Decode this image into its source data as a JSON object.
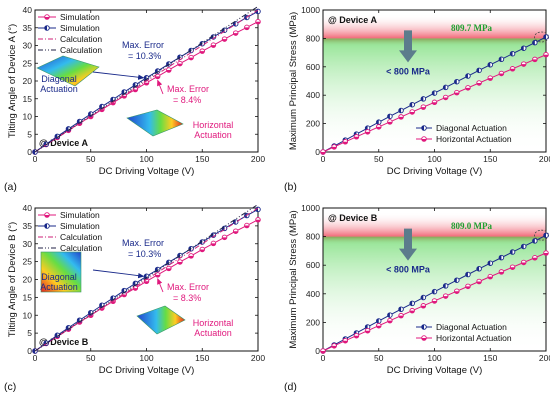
{
  "figure": {
    "colors": {
      "diagonal": "#1a2a8a",
      "horizontal": "#e0197d",
      "calc_diag": "#222244",
      "calc_horz": "#cc2277",
      "danger": "#f06070",
      "safe": "#44cc44",
      "note": "#1e9e2e"
    }
  },
  "chart_data": [
    {
      "panel": "(a)",
      "type": "line",
      "device_label": "@ Device A",
      "xlabel": "DC Driving Voltage (V)",
      "ylabel": "Tilting Angle of Device A (°)",
      "xlim": [
        0,
        200
      ],
      "ylim": [
        0,
        40
      ],
      "xticks": [
        0,
        50,
        100,
        150,
        200
      ],
      "yticks": [
        0,
        5,
        10,
        15,
        20,
        25,
        30,
        35,
        40
      ],
      "xtick_labels": [
        "0",
        "50",
        "100",
        "150",
        "200"
      ],
      "ytick_labels": [
        "0",
        "5",
        "10",
        "15",
        "20",
        "25",
        "30",
        "35",
        "40"
      ],
      "legend_position": "top-left",
      "annotations": [
        {
          "text": "Max. Error",
          "target": "diagonal"
        },
        {
          "text": "= 10.3%",
          "target": "diagonal"
        },
        {
          "text": "Max. Error",
          "target": "horizontal"
        },
        {
          "text": "= 8.4%",
          "target": "horizontal"
        },
        {
          "text": "Diagonal",
          "target": "diagonal"
        },
        {
          "text": "Actuation",
          "target": "diagonal"
        },
        {
          "text": "Horizontal",
          "target": "horizontal"
        },
        {
          "text": "Actuation",
          "target": "horizontal"
        }
      ],
      "series": [
        {
          "name": "Simulation",
          "key": "sim_h",
          "style": "sim-circle",
          "x": [
            0,
            10,
            20,
            30,
            40,
            50,
            60,
            70,
            80,
            90,
            100,
            110,
            120,
            130,
            140,
            150,
            160,
            170,
            180,
            190,
            200
          ],
          "values": [
            0,
            2.1,
            4.1,
            6.1,
            8.1,
            10.0,
            12.0,
            13.9,
            15.8,
            17.6,
            19.5,
            21.3,
            23.1,
            24.9,
            26.6,
            28.4,
            30.1,
            31.8,
            33.5,
            35.1,
            36.7
          ]
        },
        {
          "name": "Simulation",
          "key": "sim_d",
          "style": "sim-half",
          "x": [
            0,
            10,
            20,
            30,
            40,
            50,
            60,
            70,
            80,
            90,
            100,
            110,
            120,
            130,
            140,
            150,
            160,
            170,
            180,
            190,
            200
          ],
          "values": [
            0,
            2.2,
            4.4,
            6.5,
            8.6,
            10.7,
            12.8,
            14.8,
            16.9,
            18.9,
            20.9,
            22.8,
            24.8,
            26.7,
            28.6,
            30.5,
            32.4,
            34.3,
            36.1,
            37.9,
            39.6
          ]
        },
        {
          "name": "Calculation",
          "key": "calc_h",
          "style": "calc-dashdot",
          "x": [
            0,
            20,
            40,
            60,
            80,
            100,
            120,
            140,
            160,
            180,
            200
          ],
          "values": [
            0,
            4.0,
            8.0,
            12.0,
            16.0,
            20.0,
            24.0,
            28.0,
            32.0,
            36.0,
            40.0
          ]
        },
        {
          "name": "Calculation",
          "key": "calc_d",
          "style": "calc-dashdotdot",
          "x": [
            0,
            20,
            40,
            60,
            80,
            100,
            120,
            140,
            160,
            180,
            200
          ],
          "values": [
            0,
            4.1,
            8.2,
            12.3,
            16.4,
            20.5,
            24.6,
            28.7,
            32.8,
            36.9,
            41.0
          ]
        }
      ]
    },
    {
      "panel": "(b)",
      "type": "line",
      "device_label": "@ Device A",
      "xlabel": "DC Driving Voltage (V)",
      "ylabel": "Maximum Principal Stress (MPa)",
      "xlim": [
        0,
        200
      ],
      "ylim": [
        0,
        1000
      ],
      "xticks": [
        0,
        50,
        100,
        150,
        200
      ],
      "yticks": [
        0,
        200,
        400,
        600,
        800,
        1000
      ],
      "xtick_labels": [
        "0",
        "50",
        "100",
        "150",
        "200"
      ],
      "ytick_labels": [
        "0",
        "200",
        "400",
        "600",
        "800",
        "1000"
      ],
      "threshold": 800,
      "peak_label": "809.7 MPa",
      "safe_label": "< 800 MPa",
      "legend_position": "bottom-right",
      "series": [
        {
          "name": "Diagonal Actuation",
          "key": "diag",
          "style": "diag",
          "x": [
            0,
            10,
            20,
            30,
            40,
            50,
            60,
            70,
            80,
            90,
            100,
            110,
            120,
            130,
            140,
            150,
            160,
            170,
            180,
            190,
            200
          ],
          "values": [
            0,
            42,
            84,
            126,
            168,
            210,
            251,
            292,
            333,
            374,
            415,
            455,
            495,
            535,
            575,
            614,
            653,
            692,
            731,
            770,
            810
          ]
        },
        {
          "name": "Horizontal Actuation",
          "key": "horz",
          "style": "horz",
          "x": [
            0,
            10,
            20,
            30,
            40,
            50,
            60,
            70,
            80,
            90,
            100,
            110,
            120,
            130,
            140,
            150,
            160,
            170,
            180,
            190,
            200
          ],
          "values": [
            0,
            36,
            72,
            107,
            142,
            177,
            212,
            247,
            282,
            316,
            350,
            384,
            418,
            452,
            486,
            520,
            553,
            586,
            619,
            652,
            685
          ]
        }
      ]
    },
    {
      "panel": "(c)",
      "type": "line",
      "device_label": "@ Device B",
      "xlabel": "DC Driving Voltage (V)",
      "ylabel": "Tilting Angle of Device B (°)",
      "xlim": [
        0,
        200
      ],
      "ylim": [
        0,
        40
      ],
      "xticks": [
        0,
        50,
        100,
        150,
        200
      ],
      "yticks": [
        0,
        5,
        10,
        15,
        20,
        25,
        30,
        35,
        40
      ],
      "xtick_labels": [
        "0",
        "50",
        "100",
        "150",
        "200"
      ],
      "ytick_labels": [
        "0",
        "5",
        "10",
        "15",
        "20",
        "25",
        "30",
        "35",
        "40"
      ],
      "legend_position": "top-left",
      "annotations": [
        {
          "text": "Max. Error",
          "target": "diagonal"
        },
        {
          "text": "= 10.3%",
          "target": "diagonal"
        },
        {
          "text": "Max. Error",
          "target": "horizontal"
        },
        {
          "text": "= 8.3%",
          "target": "horizontal"
        },
        {
          "text": "Diagonal",
          "target": "diagonal"
        },
        {
          "text": "Actuation",
          "target": "diagonal"
        },
        {
          "text": "Horizontal",
          "target": "horizontal"
        },
        {
          "text": "Actuation",
          "target": "horizontal"
        }
      ],
      "series": [
        {
          "name": "Simulation",
          "key": "sim_h",
          "style": "sim-circle",
          "x": [
            0,
            10,
            20,
            30,
            40,
            50,
            60,
            70,
            80,
            90,
            100,
            110,
            120,
            130,
            140,
            150,
            160,
            170,
            180,
            190,
            200
          ],
          "values": [
            0,
            2.1,
            4.1,
            6.1,
            8.1,
            10.0,
            12.0,
            13.9,
            15.8,
            17.6,
            19.5,
            21.3,
            23.1,
            24.9,
            26.6,
            28.4,
            30.1,
            31.8,
            33.5,
            35.1,
            36.7
          ]
        },
        {
          "name": "Simulation",
          "key": "sim_d",
          "style": "sim-half",
          "x": [
            0,
            10,
            20,
            30,
            40,
            50,
            60,
            70,
            80,
            90,
            100,
            110,
            120,
            130,
            140,
            150,
            160,
            170,
            180,
            190,
            200
          ],
          "values": [
            0,
            2.2,
            4.4,
            6.5,
            8.6,
            10.7,
            12.8,
            14.8,
            16.9,
            18.9,
            20.9,
            22.8,
            24.8,
            26.7,
            28.6,
            30.5,
            32.4,
            34.3,
            36.1,
            37.9,
            39.6
          ]
        },
        {
          "name": "Calculation",
          "key": "calc_h",
          "style": "calc-dashdot",
          "x": [
            0,
            20,
            40,
            60,
            80,
            100,
            120,
            140,
            160,
            180,
            200
          ],
          "values": [
            0,
            4.0,
            8.0,
            12.0,
            16.0,
            20.0,
            24.0,
            28.0,
            32.0,
            36.0,
            40.0
          ]
        },
        {
          "name": "Calculation",
          "key": "calc_d",
          "style": "calc-dashdotdot",
          "x": [
            0,
            20,
            40,
            60,
            80,
            100,
            120,
            140,
            160,
            180,
            200
          ],
          "values": [
            0,
            4.1,
            8.2,
            12.3,
            16.4,
            20.5,
            24.6,
            28.7,
            32.8,
            36.9,
            41.0
          ]
        }
      ]
    },
    {
      "panel": "(d)",
      "type": "line",
      "device_label": "@ Device B",
      "xlabel": "DC Driving Voltage (V)",
      "ylabel": "Maximum Principal Stress (MPa)",
      "xlim": [
        0,
        200
      ],
      "ylim": [
        0,
        1000
      ],
      "xticks": [
        0,
        50,
        100,
        150,
        200
      ],
      "yticks": [
        0,
        200,
        400,
        600,
        800,
        1000
      ],
      "xtick_labels": [
        "0",
        "50",
        "100",
        "150",
        "200"
      ],
      "ytick_labels": [
        "0",
        "200",
        "400",
        "600",
        "800",
        "1000"
      ],
      "threshold": 800,
      "peak_label": "809.0 MPa",
      "safe_label": "< 800 MPa",
      "legend_position": "bottom-right",
      "series": [
        {
          "name": "Diagonal Actuation",
          "key": "diag",
          "style": "diag",
          "x": [
            0,
            10,
            20,
            30,
            40,
            50,
            60,
            70,
            80,
            90,
            100,
            110,
            120,
            130,
            140,
            150,
            160,
            170,
            180,
            190,
            200
          ],
          "values": [
            0,
            42,
            84,
            126,
            168,
            210,
            251,
            292,
            333,
            374,
            415,
            455,
            495,
            535,
            575,
            614,
            653,
            692,
            731,
            770,
            809
          ]
        },
        {
          "name": "Horizontal Actuation",
          "key": "horz",
          "style": "horz",
          "x": [
            0,
            10,
            20,
            30,
            40,
            50,
            60,
            70,
            80,
            90,
            100,
            110,
            120,
            130,
            140,
            150,
            160,
            170,
            180,
            190,
            200
          ],
          "values": [
            0,
            36,
            72,
            107,
            142,
            177,
            212,
            247,
            282,
            316,
            350,
            384,
            418,
            452,
            486,
            520,
            553,
            586,
            619,
            652,
            685
          ]
        }
      ]
    }
  ]
}
